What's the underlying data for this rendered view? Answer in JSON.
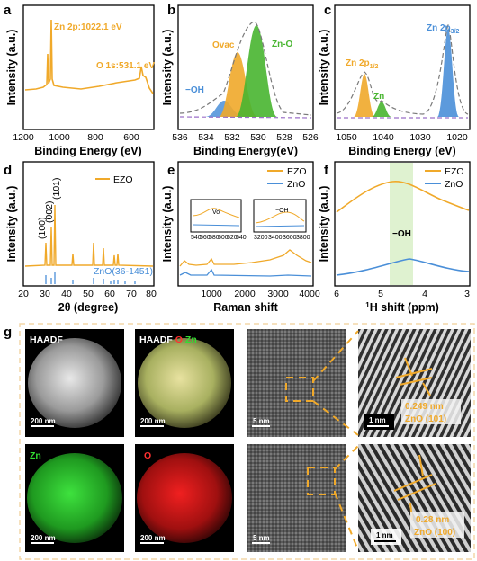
{
  "panels": {
    "a": {
      "label": "a",
      "xlabel": "Binding Energy (eV)",
      "ylabel": "Intensity (a.u.)",
      "xticks": [
        "1200",
        "1000",
        "800",
        "600"
      ],
      "ann1": "Zn 2p:1022.1 eV",
      "ann2": "O 1s:531.1 eV"
    },
    "b": {
      "label": "b",
      "xlabel": "Binding Energy(eV)",
      "ylabel": "Intensity (a.u.)",
      "xticks": [
        "536",
        "534",
        "532",
        "530",
        "528",
        "526"
      ],
      "ann_ovac": "Ovac",
      "ann_zno": "Zn-O",
      "ann_oh": "−OH"
    },
    "c": {
      "label": "c",
      "xlabel": "Binding Energy (eV)",
      "ylabel": "Intensity (a.u.)",
      "xticks": [
        "1050",
        "1040",
        "1030",
        "1020"
      ],
      "ann_zn2p12": "Zn 2p",
      "ann_zn2p12_sub": "1/2",
      "ann_zn": "Zn",
      "ann_zn2p32": "Zn 2p",
      "ann_zn2p32_sub": "3/2"
    },
    "d": {
      "label": "d",
      "xlabel": "2θ (degree)",
      "ylabel": "Intensity (a.u.)",
      "xticks": [
        "20",
        "30",
        "40",
        "50",
        "60",
        "70",
        "80"
      ],
      "legend": "EZO",
      "pdf": "ZnO(36-1451)",
      "peak100": "(100)",
      "peak002": "(002)",
      "peak101": "(101)"
    },
    "e": {
      "label": "e",
      "xlabel": "Raman shift",
      "ylabel": "Intensity (a.u.)",
      "xticks": [
        "1000",
        "2000",
        "3000",
        "4000"
      ],
      "legend1": "EZO",
      "legend2": "ZnO",
      "inset1_label": "Vo",
      "inset1_ticks": [
        "540",
        "560",
        "580",
        "600",
        "620",
        "640"
      ],
      "inset2_label": "−OH",
      "inset2_ticks": [
        "3200",
        "3400",
        "3600",
        "3800"
      ]
    },
    "f": {
      "label": "f",
      "xlabel": "H shift (ppm)",
      "xlabel_sup": "1",
      "ylabel": "Intensity (a.u.)",
      "xticks": [
        "6",
        "5",
        "4",
        "3"
      ],
      "legend1": "EZO",
      "legend2": "ZnO",
      "ann_oh": "−OH"
    },
    "g": {
      "label": "g",
      "tiles": {
        "haadf": "HAADF",
        "haadf_zn_1": "HAADF",
        "haadf_zn_2": "O",
        "haadf_zn_3": "Zn",
        "zn": "Zn",
        "o": "O"
      },
      "scale_200": "200 nm",
      "scale_5": "5 nm",
      "scale_1": "1 nm",
      "dspace1": "0.249 nm",
      "plane1": "ZnO (101)",
      "dspace2": "0.28 nm",
      "plane2": "ZnO (100)"
    }
  },
  "colors": {
    "orange": "#f0a92a",
    "green": "#48b530",
    "blue": "#4a8fd8",
    "purple": "#9b6fc8",
    "border": "#f3d7a8"
  },
  "chart_data": [
    {
      "type": "line",
      "panel": "a",
      "title": "",
      "xlabel": "Binding Energy (eV)",
      "ylabel": "Intensity (a.u.)",
      "xlim": [
        1200,
        450
      ],
      "series": [
        {
          "name": "",
          "x": [
            1200,
            1100,
            1060,
            1045,
            1040,
            1022,
            1020,
            1000,
            900,
            800,
            700,
            600,
            560,
            531,
            520,
            470
          ],
          "y": [
            0.3,
            0.32,
            0.34,
            0.42,
            0.8,
            0.9,
            0.4,
            0.35,
            0.3,
            0.28,
            0.3,
            0.34,
            0.36,
            0.55,
            0.4,
            0.36
          ]
        }
      ],
      "annotations": [
        "Zn 2p:1022.1 eV",
        "O 1s:531.1 eV"
      ]
    },
    {
      "type": "area",
      "panel": "b",
      "xlabel": "Binding Energy(eV)",
      "ylabel": "Intensity (a.u.)",
      "xlim": [
        536,
        526
      ],
      "series": [
        {
          "name": "Ovac",
          "peak": 531.6
        },
        {
          "name": "Zn-O",
          "peak": 530.1
        },
        {
          "name": "−OH",
          "peak": 533.0
        }
      ]
    },
    {
      "type": "area",
      "panel": "c",
      "xlabel": "Binding Energy (eV)",
      "ylabel": "Intensity (a.u.)",
      "xlim": [
        1053,
        1017
      ],
      "series": [
        {
          "name": "Zn 2p1/2",
          "peak": 1045.0
        },
        {
          "name": "Zn",
          "peak": 1040.0
        },
        {
          "name": "Zn 2p3/2",
          "peak": 1022.1
        }
      ]
    },
    {
      "type": "line",
      "panel": "d",
      "xlabel": "2θ (degree)",
      "ylabel": "Intensity (a.u.)",
      "xlim": [
        20,
        80
      ],
      "series": [
        {
          "name": "EZO",
          "peaks": [
            31.8,
            34.4,
            36.3,
            47.5,
            56.6,
            62.9,
            67.9,
            69.1
          ]
        },
        {
          "name": "ZnO(36-1451)",
          "peaks": [
            31.8,
            34.4,
            36.3,
            47.5,
            56.6,
            62.9,
            66.4,
            67.9,
            69.1,
            72.6,
            77.0
          ]
        }
      ],
      "annotations": [
        "(100)",
        "(002)",
        "(101)"
      ]
    },
    {
      "type": "line",
      "panel": "e",
      "xlabel": "Raman shift",
      "ylabel": "Intensity (a.u.)",
      "xlim": [
        0,
        4000
      ],
      "series": [
        {
          "name": "EZO"
        },
        {
          "name": "ZnO"
        }
      ]
    },
    {
      "type": "line",
      "panel": "f",
      "xlabel": "1H shift (ppm)",
      "ylabel": "Intensity (a.u.)",
      "xlim": [
        6,
        3
      ],
      "series": [
        {
          "name": "EZO",
          "peak": 4.6
        },
        {
          "name": "ZnO",
          "peak": 4.2
        }
      ],
      "annotations": [
        "−OH"
      ]
    }
  ]
}
